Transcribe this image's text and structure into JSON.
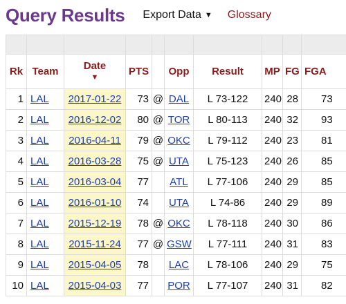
{
  "header": {
    "title": "Query Results",
    "export_label": "Export Data",
    "export_arrow": "▼",
    "glossary_label": "Glossary"
  },
  "table": {
    "columns": {
      "rk": "Rk",
      "team": "Team",
      "date": "Date",
      "date_sort_icon": "▼",
      "pts": "PTS",
      "opp": "Opp",
      "result": "Result",
      "mp": "MP",
      "fg": "FG",
      "fga": "FGA"
    },
    "rows": [
      {
        "rk": "1",
        "team": "LAL",
        "date": "2017-01-22",
        "pts": "73",
        "at": "@",
        "opp": "DAL",
        "result": "L 73-122",
        "mp": "240",
        "fg": "28",
        "fga": "73"
      },
      {
        "rk": "2",
        "team": "LAL",
        "date": "2016-12-02",
        "pts": "80",
        "at": "@",
        "opp": "TOR",
        "result": "L 80-113",
        "mp": "240",
        "fg": "32",
        "fga": "93"
      },
      {
        "rk": "3",
        "team": "LAL",
        "date": "2016-04-11",
        "pts": "79",
        "at": "@",
        "opp": "OKC",
        "result": "L 79-112",
        "mp": "240",
        "fg": "23",
        "fga": "81"
      },
      {
        "rk": "4",
        "team": "LAL",
        "date": "2016-03-28",
        "pts": "75",
        "at": "@",
        "opp": "UTA",
        "result": "L 75-123",
        "mp": "240",
        "fg": "26",
        "fga": "85"
      },
      {
        "rk": "5",
        "team": "LAL",
        "date": "2016-03-04",
        "pts": "77",
        "at": "",
        "opp": "ATL",
        "result": "L 77-106",
        "mp": "240",
        "fg": "29",
        "fga": "85"
      },
      {
        "rk": "6",
        "team": "LAL",
        "date": "2016-01-10",
        "pts": "74",
        "at": "",
        "opp": "UTA",
        "result": "L 74-86",
        "mp": "240",
        "fg": "29",
        "fga": "89"
      },
      {
        "rk": "7",
        "team": "LAL",
        "date": "2015-12-19",
        "pts": "78",
        "at": "@",
        "opp": "OKC",
        "result": "L 78-118",
        "mp": "240",
        "fg": "30",
        "fga": "86"
      },
      {
        "rk": "8",
        "team": "LAL",
        "date": "2015-11-24",
        "pts": "77",
        "at": "@",
        "opp": "GSW",
        "result": "L 77-111",
        "mp": "240",
        "fg": "31",
        "fga": "83"
      },
      {
        "rk": "9",
        "team": "LAL",
        "date": "2015-04-05",
        "pts": "78",
        "at": "",
        "opp": "LAC",
        "result": "L 78-106",
        "mp": "240",
        "fg": "29",
        "fga": "75"
      },
      {
        "rk": "10",
        "team": "LAL",
        "date": "2015-04-03",
        "pts": "77",
        "at": "",
        "opp": "POR",
        "result": "L 77-107",
        "mp": "240",
        "fg": "31",
        "fga": "82"
      }
    ]
  }
}
